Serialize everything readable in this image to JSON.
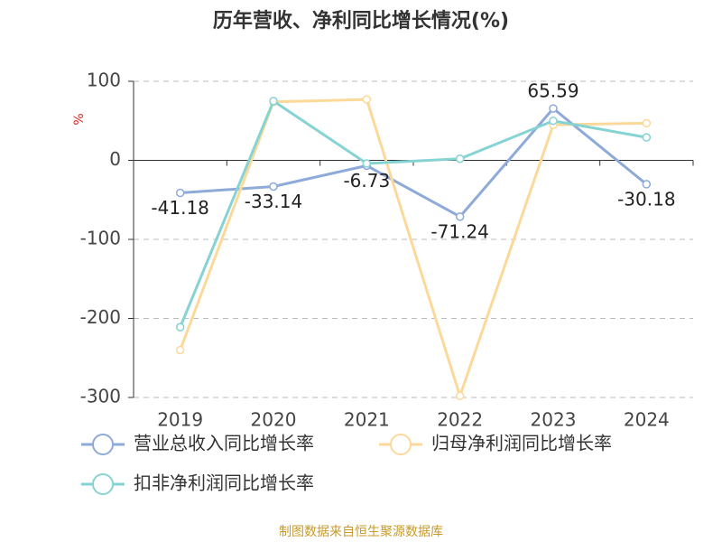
{
  "chart_data": {
    "type": "line",
    "title": "历年营收、净利同比增长情况(%)",
    "y_label": "%",
    "categories": [
      "2019",
      "2020",
      "2021",
      "2022",
      "2023",
      "2024"
    ],
    "series": [
      {
        "name": "营业总收入同比增长率",
        "color": "#8eaad8",
        "values": [
          -41.18,
          -33.14,
          -6.73,
          -71.24,
          65.59,
          -30.18
        ],
        "labels": true
      },
      {
        "name": "归母净利润同比增长率",
        "color": "#fcd99a",
        "values": [
          -240,
          74,
          77,
          -298,
          45,
          47
        ]
      },
      {
        "name": "扣非净利润同比增长率",
        "color": "#86d3d3",
        "values": [
          -211,
          75,
          -4,
          2,
          50,
          29
        ]
      }
    ],
    "ylim": [
      -300,
      100
    ],
    "yticks": [
      -300,
      -200,
      -100,
      0,
      100
    ],
    "grid": true,
    "source": "制图数据来自恒生聚源数据库"
  }
}
